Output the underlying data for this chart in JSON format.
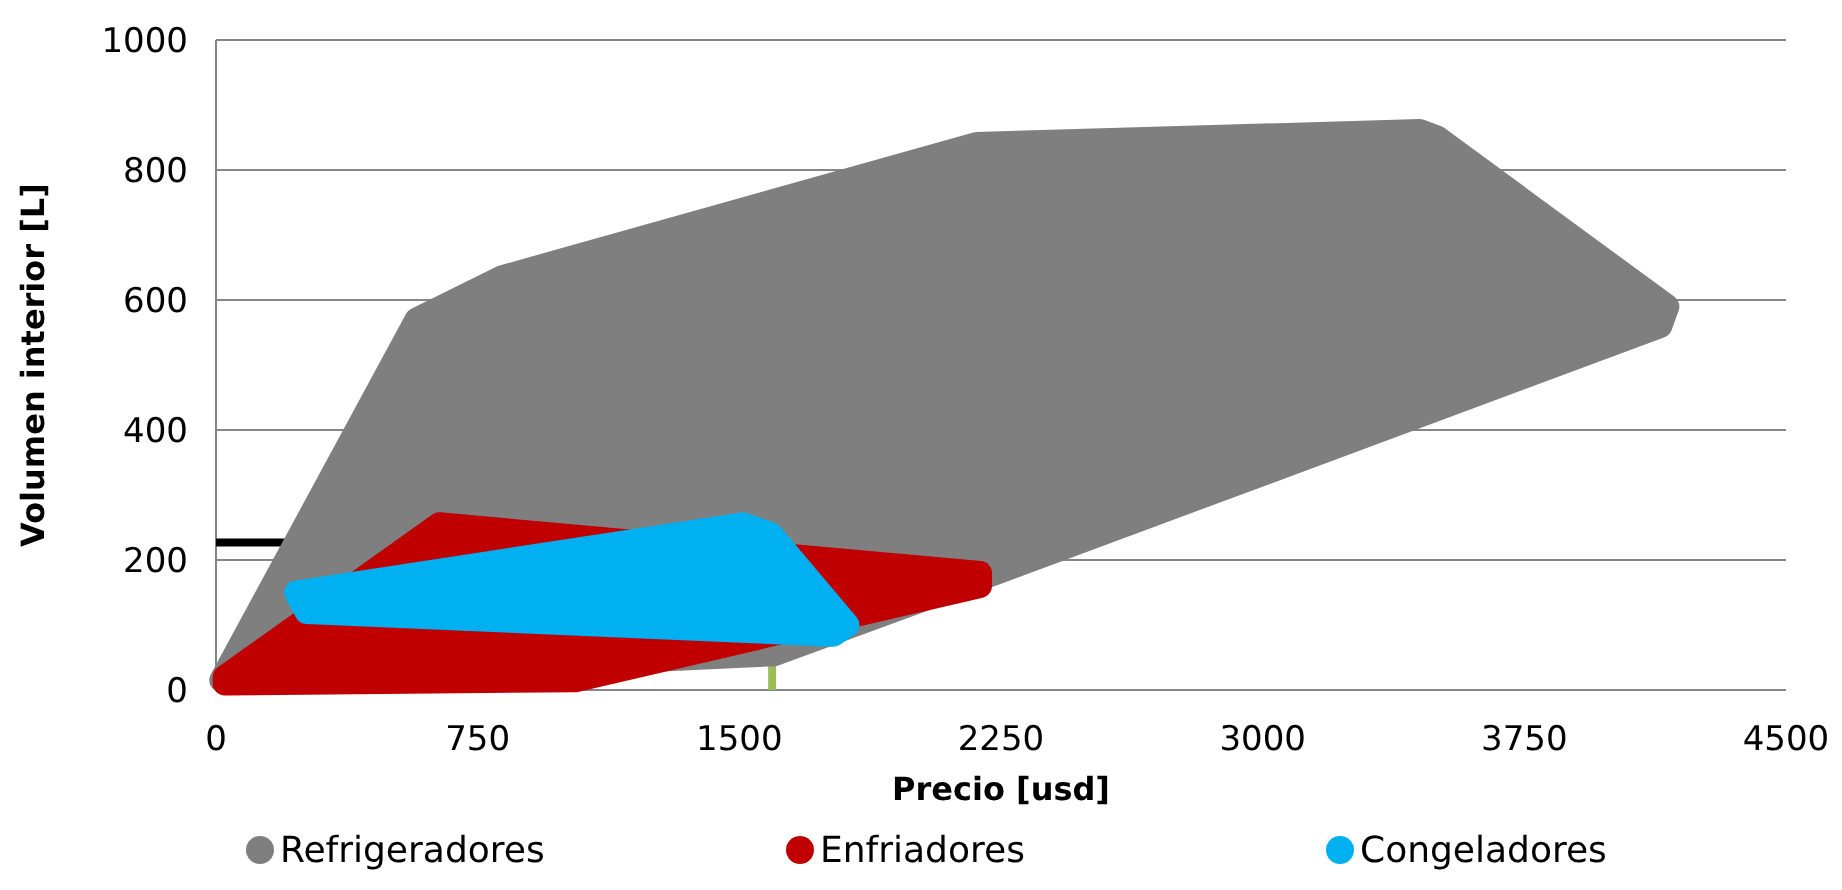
{
  "chart_data": {
    "type": "area",
    "xlabel": "Precio [usd]",
    "ylabel": "Volumen interior [L]",
    "xlim": [
      0,
      4500
    ],
    "xticks": [
      0,
      750,
      1500,
      2250,
      3000,
      3750,
      4500
    ],
    "ylim": [
      0,
      1000
    ],
    "yticks": [
      0,
      200,
      400,
      600,
      800,
      1000
    ],
    "grid": "y",
    "legend": "bottom",
    "series": [
      {
        "type": "line",
        "color": "#000000",
        "x": [
          0,
          210
        ],
        "values": [
          227,
          227
        ]
      },
      {
        "type": "line",
        "color": "#9bbb59",
        "x": [
          1594,
          1594
        ],
        "values": [
          0,
          37
        ]
      },
      {
        "name": "Refrigeradores",
        "color": "#7f7f7f",
        "x": [
          15,
          575,
          820,
          2180,
          3450,
          3500,
          4160,
          4140,
          2260,
          1600,
          15
        ],
        "values": [
          15,
          570,
          635,
          840,
          860,
          850,
          590,
          560,
          185,
          55,
          15
        ]
      },
      {
        "name": "Enfriadores",
        "color": "#c00000",
        "x": [
          25,
          640,
          2190,
          2190,
          1030,
          25,
          25
        ],
        "values": [
          20,
          255,
          180,
          160,
          15,
          10,
          20
        ]
      },
      {
        "name": "Congeladores",
        "color": "#00b0f0",
        "x": [
          230,
          1510,
          1590,
          1810,
          1770,
          260,
          230
        ],
        "values": [
          150,
          255,
          240,
          100,
          85,
          120,
          150
        ]
      }
    ]
  }
}
